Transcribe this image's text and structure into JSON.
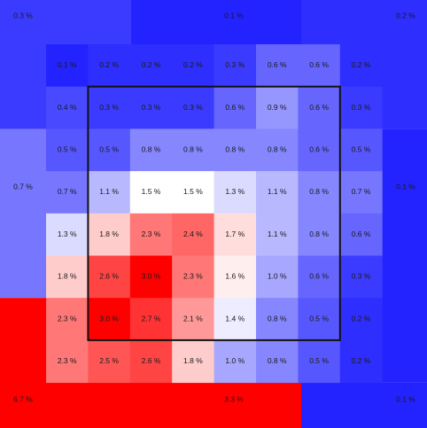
{
  "chart_data": {
    "type": "heatmap",
    "unit": "%",
    "color_scale": {
      "low": "#1a1aff",
      "mid": "#ffffff",
      "high": "#ff0000",
      "mid_value": 1.5,
      "max_value": 3.0
    },
    "strike_zone_border": "#111111",
    "outer_zones": [
      {
        "zone": "top-left",
        "value": 0.3,
        "label": "0.3 %"
      },
      {
        "zone": "top",
        "value": 0.1,
        "label": "0.1 %"
      },
      {
        "zone": "top-right",
        "value": 0.2,
        "label": "0.2 %"
      },
      {
        "zone": "left-upper",
        "value": 0.3,
        "label": ""
      },
      {
        "zone": "left-middle",
        "value": 0.7,
        "label": "0.7 %"
      },
      {
        "zone": "right-middle",
        "value": 0.1,
        "label": "0.1 %"
      },
      {
        "zone": "bottom-left",
        "value": 6.7,
        "label": "6.7 %"
      },
      {
        "zone": "bottom",
        "value": 3.3,
        "label": "3.3 %"
      },
      {
        "zone": "bottom-right",
        "value": 0.1,
        "label": "0.1 %"
      }
    ],
    "grid_values": [
      [
        0.1,
        0.2,
        0.2,
        0.2,
        0.3,
        0.6,
        0.6,
        0.2
      ],
      [
        0.4,
        0.3,
        0.3,
        0.3,
        0.6,
        0.9,
        0.6,
        0.3
      ],
      [
        0.5,
        0.5,
        0.8,
        0.8,
        0.8,
        0.8,
        0.6,
        0.5
      ],
      [
        0.7,
        1.1,
        1.5,
        1.5,
        1.3,
        1.1,
        0.8,
        0.7
      ],
      [
        1.3,
        1.8,
        2.3,
        2.4,
        1.7,
        1.1,
        0.8,
        0.6
      ],
      [
        1.8,
        2.6,
        3.0,
        2.3,
        1.6,
        1.0,
        0.6,
        0.3
      ],
      [
        2.3,
        3.0,
        2.7,
        2.1,
        1.4,
        0.8,
        0.5,
        0.2
      ],
      [
        2.3,
        2.5,
        2.6,
        1.8,
        1.0,
        0.8,
        0.5,
        0.2
      ]
    ]
  }
}
